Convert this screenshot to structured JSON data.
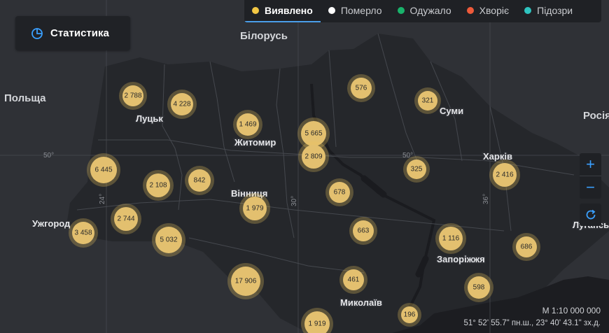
{
  "stats_button": {
    "label": "Статистика",
    "icon": "pie-chart-icon"
  },
  "legend": [
    {
      "label": "Виявлено",
      "color": "#f2c744",
      "active": true
    },
    {
      "label": "Померло",
      "color": "#ffffff",
      "active": false
    },
    {
      "label": "Одужало",
      "color": "#19b36b",
      "active": false
    },
    {
      "label": "Хворіє",
      "color": "#ee5a3a",
      "active": false
    },
    {
      "label": "Підозри",
      "color": "#2fc4c0",
      "active": false
    }
  ],
  "countries": [
    {
      "name": "Білорусь"
    },
    {
      "name": "Польща"
    },
    {
      "name": "Росія"
    }
  ],
  "cities": [
    {
      "name": "Луцьк"
    },
    {
      "name": "Житомир"
    },
    {
      "name": "Суми"
    },
    {
      "name": "Харків"
    },
    {
      "name": "Вінниця"
    },
    {
      "name": "Ужгород"
    },
    {
      "name": "Запоріжжя"
    },
    {
      "name": "Миколаїв"
    },
    {
      "name": "Луганськ"
    }
  ],
  "grid_labels": {
    "lat_50_left": "50°",
    "lat_50_right": "50°",
    "lon_24": "24°",
    "lon_30": "30°",
    "lon_36": "36°"
  },
  "clusters": [
    {
      "value": "2 788"
    },
    {
      "value": "4 228"
    },
    {
      "value": "1 469"
    },
    {
      "value": "5 665"
    },
    {
      "value": "2 809"
    },
    {
      "value": "576"
    },
    {
      "value": "321"
    },
    {
      "value": "6 445"
    },
    {
      "value": "2 108"
    },
    {
      "value": "842"
    },
    {
      "value": "1 979"
    },
    {
      "value": "678"
    },
    {
      "value": "325"
    },
    {
      "value": "2 416"
    },
    {
      "value": "2 744"
    },
    {
      "value": "3 458"
    },
    {
      "value": "5 032"
    },
    {
      "value": "663"
    },
    {
      "value": "1 116"
    },
    {
      "value": "686"
    },
    {
      "value": "17 906"
    },
    {
      "value": "461"
    },
    {
      "value": "598"
    },
    {
      "value": "196"
    },
    {
      "value": "1 919"
    }
  ],
  "zoom": {
    "in_label": "+",
    "out_label": "−"
  },
  "scale": "М 1:10 000 000",
  "coordinates": "51° 52' 55.7\" пн.ш., 23° 40' 43.1\" зх.д."
}
